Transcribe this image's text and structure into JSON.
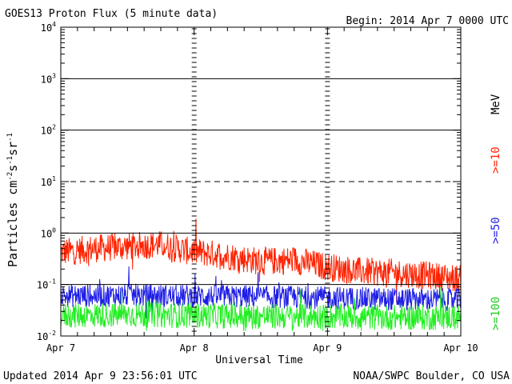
{
  "chart_data": {
    "type": "line",
    "title": "GOES13 Proton Flux (5 minute data)",
    "begin": "Begin: 2014 Apr 7 0000 UTC",
    "xlabel": "Universal Time",
    "ylabel": "Particles cm⁻²s⁻¹sr⁻¹",
    "ylabel_parts": [
      "Particles cm",
      "-2",
      "s",
      "-1",
      "sr",
      "-1"
    ],
    "yscale": "log",
    "ylim": [
      0.01,
      10000
    ],
    "xlim": [
      0,
      3
    ],
    "x_unit": "days since 2014 Apr 7 0000 UTC",
    "x_ticks": [
      {
        "value": 0,
        "label": "Apr 7"
      },
      {
        "value": 1,
        "label": "Apr 8"
      },
      {
        "value": 2,
        "label": "Apr 9"
      },
      {
        "value": 3,
        "label": "Apr 10"
      }
    ],
    "y_ticks": [
      {
        "value": 0.01,
        "base": "10",
        "exp": "-2"
      },
      {
        "value": 0.1,
        "base": "10",
        "exp": "-1"
      },
      {
        "value": 1,
        "base": "10",
        "exp": "0"
      },
      {
        "value": 10,
        "base": "10",
        "exp": "1"
      },
      {
        "value": 100,
        "base": "10",
        "exp": "2"
      },
      {
        "value": 1000,
        "base": "10",
        "exp": "3"
      },
      {
        "value": 10000,
        "base": "10",
        "exp": "4"
      }
    ],
    "reference_lines": [
      {
        "value": 10,
        "style": "dashed"
      },
      {
        "value": 100,
        "style": "solid"
      },
      {
        "value": 1000,
        "style": "solid"
      },
      {
        "value": 1,
        "style": "solid"
      },
      {
        "value": 0.1,
        "style": "solid"
      }
    ],
    "legend_unit": "MeV",
    "series": [
      {
        "name": ">=10",
        "color": "#ff2200",
        "points": [
          [
            0,
            0.42
          ],
          [
            0.25,
            0.5
          ],
          [
            0.5,
            0.55
          ],
          [
            0.75,
            0.6
          ],
          [
            0.95,
            0.45
          ],
          [
            1.2,
            0.38
          ],
          [
            1.5,
            0.28
          ],
          [
            1.75,
            0.3
          ],
          [
            2.0,
            0.22
          ],
          [
            2.25,
            0.18
          ],
          [
            2.5,
            0.17
          ],
          [
            2.75,
            0.15
          ],
          [
            3.0,
            0.13
          ]
        ]
      },
      {
        "name": ">=50",
        "color": "#1e1ee6",
        "points": [
          [
            0,
            0.06
          ],
          [
            0.5,
            0.062
          ],
          [
            1.0,
            0.06
          ],
          [
            1.5,
            0.058
          ],
          [
            2.0,
            0.055
          ],
          [
            2.5,
            0.052
          ],
          [
            3.0,
            0.05
          ]
        ]
      },
      {
        "name": ">=100",
        "color": "#22ee22",
        "points": [
          [
            0,
            0.025
          ],
          [
            0.5,
            0.026
          ],
          [
            1.0,
            0.025
          ],
          [
            1.5,
            0.024
          ],
          [
            2.0,
            0.024
          ],
          [
            2.5,
            0.023
          ],
          [
            3.0,
            0.023
          ]
        ]
      }
    ]
  },
  "footer": {
    "updated": "Updated 2014 Apr  9 23:56:01 UTC",
    "source": "NOAA/SWPC Boulder, CO USA"
  }
}
